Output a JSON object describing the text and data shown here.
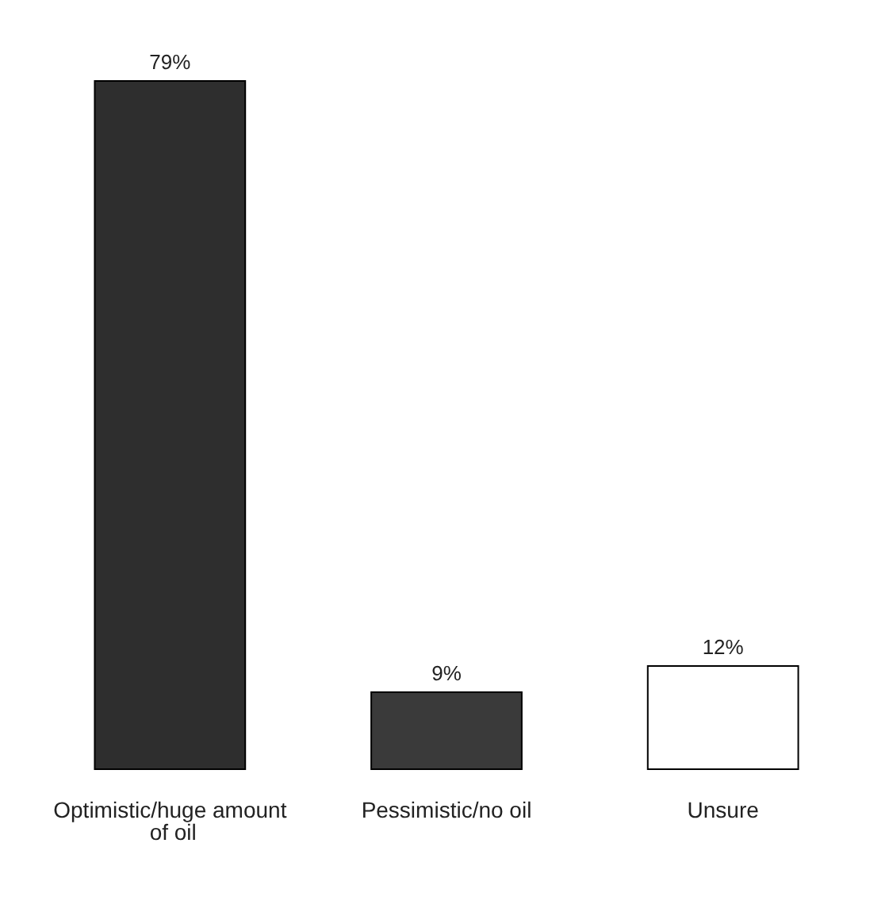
{
  "chart_data": {
    "type": "bar",
    "categories": [
      "Optimistic/huge amount of oil",
      "Pessimistic/no oil",
      "Unsure"
    ],
    "values": [
      79,
      9,
      12
    ],
    "colors": [
      "#2e2e2e",
      "#3a3a3a",
      "#ffffff"
    ],
    "value_labels": [
      "79%",
      "9%",
      "12%"
    ]
  }
}
